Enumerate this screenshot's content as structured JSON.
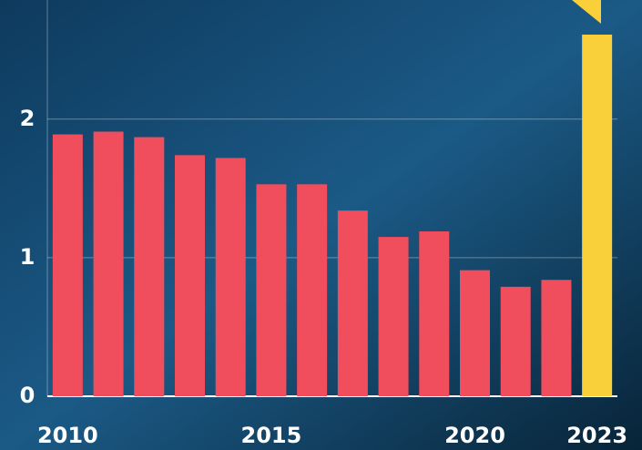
{
  "chart_data": {
    "type": "bar",
    "categories": [
      "2010",
      null,
      null,
      null,
      null,
      "2015",
      null,
      null,
      null,
      null,
      "2020",
      null,
      null,
      "2023"
    ],
    "values": [
      1.89,
      1.91,
      1.87,
      1.74,
      1.72,
      1.53,
      1.53,
      1.34,
      1.15,
      1.19,
      0.91,
      0.79,
      0.84,
      2.61
    ],
    "colors": [
      "#f04d5d",
      "#f04d5d",
      "#f04d5d",
      "#f04d5d",
      "#f04d5d",
      "#f04d5d",
      "#f04d5d",
      "#f04d5d",
      "#f04d5d",
      "#f04d5d",
      "#f04d5d",
      "#f04d5d",
      "#f04d5d",
      "#f9cf3a"
    ],
    "ylim": [
      0,
      2.86
    ],
    "yticks": [
      0,
      1,
      2
    ],
    "grid": true
  }
}
